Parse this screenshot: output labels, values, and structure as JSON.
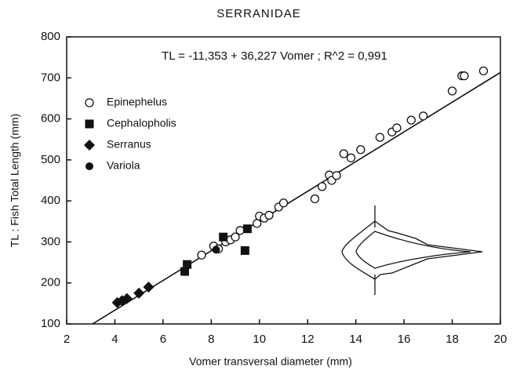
{
  "chart_data": {
    "type": "scatter",
    "title": "SERRANIDAE",
    "annotation": "TL = -11,353 + 36,227 Vomer ;  R^2 = 0,991",
    "x_label": "Vomer transversal diameter (mm)",
    "y_label": "TL : Fish Total Length (mm)",
    "xlim": [
      2,
      20
    ],
    "ylim": [
      100,
      800
    ],
    "xticks": [
      2,
      4,
      6,
      8,
      10,
      12,
      14,
      16,
      18,
      20
    ],
    "yticks": [
      100,
      200,
      300,
      400,
      500,
      600,
      700,
      800
    ],
    "trend": {
      "intercept": -11.353,
      "slope": 36.227
    },
    "legend": "upper left",
    "series": [
      {
        "name": "Epinephelus",
        "marker": "open-circle",
        "color": "#111111",
        "x": [
          7.6,
          8.1,
          8.3,
          8.6,
          8.8,
          9.0,
          9.2,
          9.9,
          10.0,
          10.2,
          10.4,
          10.8,
          11.0,
          12.3,
          12.6,
          12.9,
          13.0,
          13.2,
          13.5,
          13.8,
          14.2,
          15.0,
          15.5,
          15.7,
          16.3,
          16.8,
          18.0,
          18.4,
          18.5,
          19.3
        ],
        "values": [
          268,
          290,
          283,
          300,
          305,
          312,
          328,
          345,
          363,
          358,
          365,
          385,
          395,
          405,
          435,
          463,
          450,
          462,
          515,
          505,
          525,
          555,
          568,
          578,
          597,
          607,
          668,
          705,
          705,
          717
        ]
      },
      {
        "name": "Cephalopholis",
        "marker": "square",
        "color": "#111111",
        "x": [
          6.9,
          7.0,
          8.5,
          9.5,
          9.4
        ],
        "values": [
          228,
          245,
          312,
          332,
          279
        ]
      },
      {
        "name": "Serranus",
        "marker": "diamond",
        "color": "#111111",
        "x": [
          4.1,
          4.3,
          4.5,
          5.0,
          5.4
        ],
        "values": [
          152,
          157,
          162,
          175,
          190
        ]
      },
      {
        "name": "Variola",
        "marker": "circle",
        "color": "#111111",
        "x": [
          8.2
        ],
        "values": [
          281
        ]
      }
    ]
  }
}
